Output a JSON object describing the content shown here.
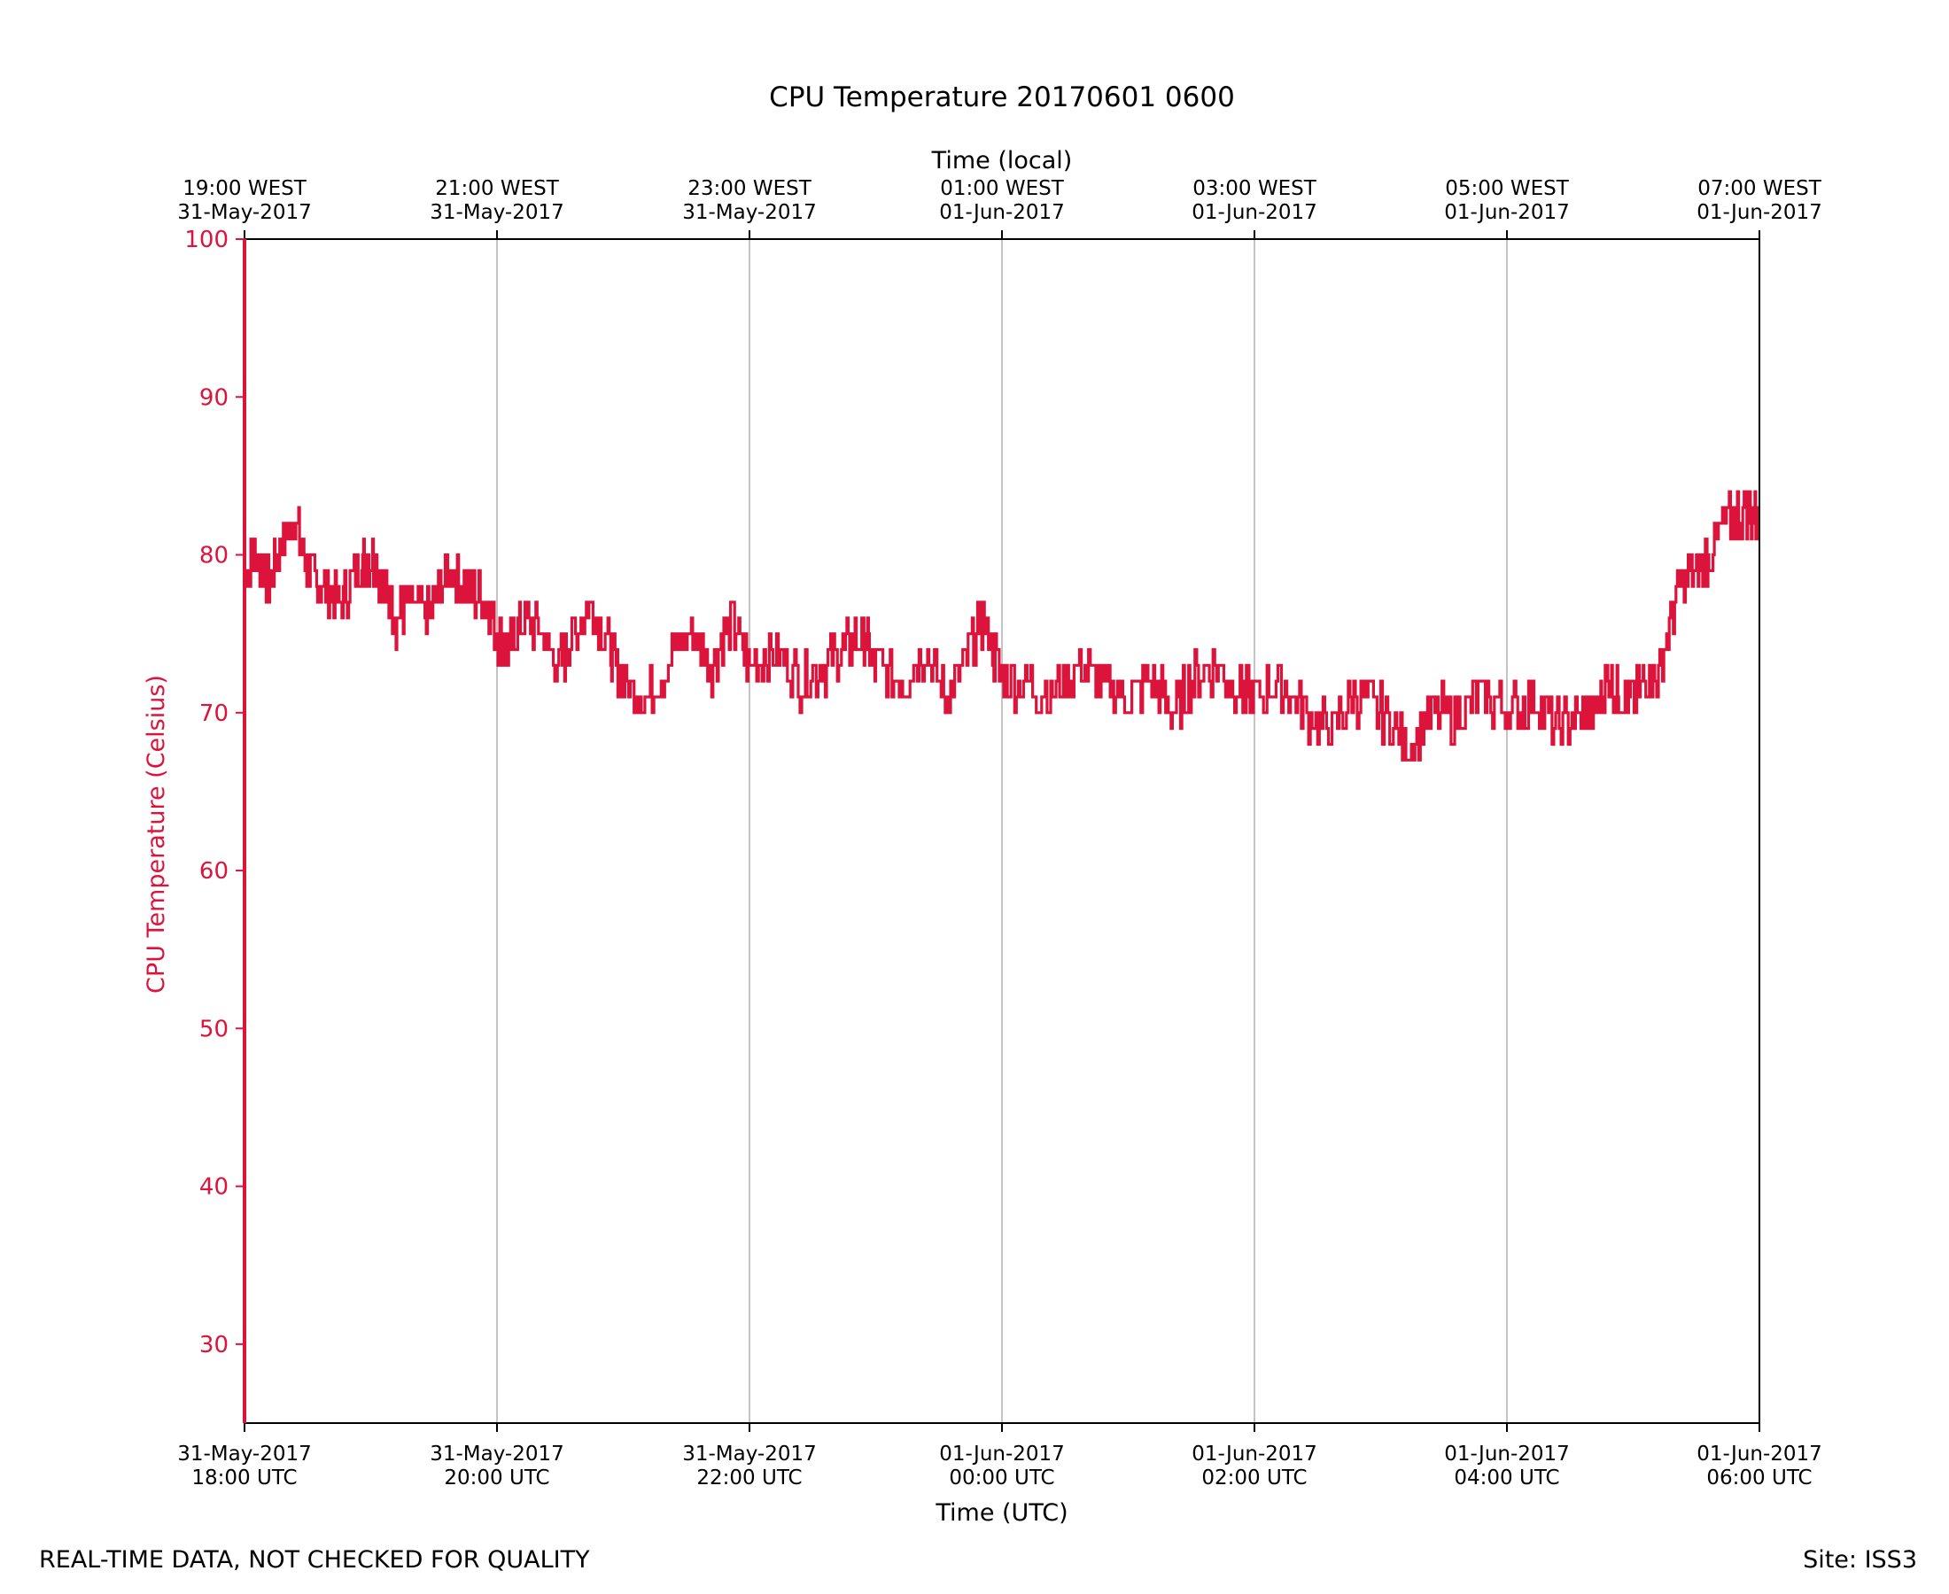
{
  "chart_data": {
    "type": "line",
    "title": "CPU Temperature 20170601 0600",
    "xlabel": "Time (UTC)",
    "x2label": "Time (local)",
    "ylabel": "CPU Temperature (Celsius)",
    "ylim": [
      25,
      100
    ],
    "xlim_hours": [
      0,
      12
    ],
    "yticks": [
      "30",
      "40",
      "50",
      "60",
      "70",
      "80",
      "90",
      "100"
    ],
    "xticks": [
      {
        "line1": "31-May-2017",
        "line2": "18:00 UTC"
      },
      {
        "line1": "31-May-2017",
        "line2": "20:00 UTC"
      },
      {
        "line1": "31-May-2017",
        "line2": "22:00 UTC"
      },
      {
        "line1": "01-Jun-2017",
        "line2": "00:00 UTC"
      },
      {
        "line1": "01-Jun-2017",
        "line2": "02:00 UTC"
      },
      {
        "line1": "01-Jun-2017",
        "line2": "04:00 UTC"
      },
      {
        "line1": "01-Jun-2017",
        "line2": "06:00 UTC"
      }
    ],
    "x2ticks": [
      {
        "line1": "19:00 WEST",
        "line2": "31-May-2017"
      },
      {
        "line1": "21:00 WEST",
        "line2": "31-May-2017"
      },
      {
        "line1": "23:00 WEST",
        "line2": "31-May-2017"
      },
      {
        "line1": "01:00 WEST",
        "line2": "01-Jun-2017"
      },
      {
        "line1": "03:00 WEST",
        "line2": "01-Jun-2017"
      },
      {
        "line1": "05:00 WEST",
        "line2": "01-Jun-2017"
      },
      {
        "line1": "07:00 WEST",
        "line2": "01-Jun-2017"
      }
    ],
    "grid_x": true,
    "series": [
      {
        "name": "CPU Temperature",
        "color": "#dc143c",
        "x_hours": [
          0.0,
          0.1,
          0.2,
          0.3,
          0.4,
          0.5,
          0.6,
          0.75,
          0.9,
          1.0,
          1.1,
          1.2,
          1.3,
          1.45,
          1.6,
          1.75,
          1.9,
          2.0,
          2.1,
          2.2,
          2.35,
          2.5,
          2.6,
          2.75,
          2.9,
          3.0,
          3.2,
          3.4,
          3.55,
          3.7,
          3.85,
          4.0,
          4.2,
          4.4,
          4.6,
          4.75,
          4.9,
          5.0,
          5.2,
          5.4,
          5.55,
          5.7,
          5.85,
          6.0,
          6.2,
          6.4,
          6.6,
          6.8,
          7.0,
          7.2,
          7.35,
          7.5,
          7.7,
          7.9,
          8.0,
          8.2,
          8.4,
          8.6,
          8.8,
          9.0,
          9.2,
          9.4,
          9.6,
          9.8,
          10.0,
          10.2,
          10.4,
          10.6,
          10.7,
          10.8,
          10.9,
          11.0,
          11.1,
          11.2,
          11.35,
          11.5,
          11.6,
          11.75,
          11.9,
          12.0
        ],
        "values": [
          79,
          80,
          78,
          81,
          82,
          79,
          78,
          77,
          79,
          80,
          78,
          76,
          77,
          76,
          79,
          78,
          77,
          75,
          74,
          76,
          75,
          73,
          75,
          77,
          74,
          72,
          71,
          74,
          75,
          73,
          76,
          73,
          74,
          72,
          73,
          74,
          75,
          73,
          72,
          74,
          71,
          73,
          76,
          72,
          72,
          71,
          73,
          72,
          71,
          72,
          70,
          72,
          73,
          71,
          71,
          72,
          70,
          69,
          71,
          70,
          68,
          70,
          70,
          71,
          70,
          71,
          69,
          70,
          70,
          72,
          71,
          71,
          72,
          72,
          78,
          79,
          80,
          82,
          83,
          82
        ]
      }
    ]
  },
  "footer": {
    "left_text": "REAL-TIME DATA, NOT CHECKED FOR QUALITY",
    "right_text": "Site: ISS3"
  }
}
